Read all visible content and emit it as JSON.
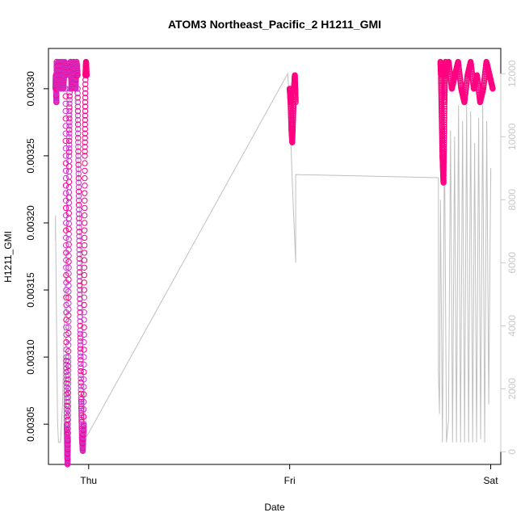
{
  "chart_data": {
    "type": "scatter",
    "title": "ATOM3 Northeast_Pacific_2 H1211_GMI",
    "xlabel": "Date",
    "ylabel": "H1211_GMI",
    "x_tick_labels": [
      "Thu",
      "Fri",
      "Sat"
    ],
    "x_ticks_days": [
      1,
      2,
      3
    ],
    "xlim_days": [
      0.8,
      3.05
    ],
    "ylim": [
      0.00302,
      0.00333
    ],
    "y_ticks": [
      0.00305,
      0.0031,
      0.00315,
      0.0032,
      0.00325,
      0.0033
    ],
    "y_tick_labels": [
      "0.00305",
      "0.00310",
      "0.00315",
      "0.00320",
      "0.00325",
      "0.00330"
    ],
    "y2lim": [
      -400,
      12800
    ],
    "y2_ticks": [
      0,
      2000,
      4000,
      6000,
      8000,
      10000,
      12000
    ],
    "y2_tick_labels": [
      "0",
      "2000",
      "4000",
      "6000",
      "8000",
      "10000",
      "12000"
    ],
    "point_color_light": "#cc33cc",
    "point_color_dark": "#ff0080",
    "line_color": "#c0c0c0",
    "axis_color": "#000000",
    "right_axis_color": "#c8c8c8",
    "series": [
      {
        "kind": "points",
        "segments": [
          {
            "x_start": 0.835,
            "x_end": 0.845,
            "y": [
              0.0033,
              0.00331,
              0.0033,
              0.00329,
              0.00332,
              0.0033,
              0.00331,
              0.0033
            ]
          },
          {
            "x_start": 0.845,
            "x_end": 0.885,
            "y": [
              0.00331,
              0.00332,
              0.0033,
              0.00331,
              0.00332,
              0.0033,
              0.00331,
              0.00332,
              0.0033,
              0.00331,
              0.00332,
              0.00331
            ]
          },
          {
            "x_start": 0.885,
            "x_end": 0.905,
            "y": [
              0.0033,
              0.0032,
              0.0031,
              0.00305,
              0.00303,
              0.00302,
              0.00304,
              0.0031,
              0.00318,
              0.00325,
              0.0033
            ]
          },
          {
            "x_start": 0.905,
            "x_end": 0.945,
            "y": [
              0.00331,
              0.00332,
              0.0033,
              0.00331,
              0.00332,
              0.00331,
              0.0033,
              0.00332,
              0.00331
            ]
          },
          {
            "x_start": 0.945,
            "x_end": 0.975,
            "y": [
              0.0033,
              0.00324,
              0.00318,
              0.00312,
              0.00307,
              0.00304,
              0.00303,
              0.00305
            ]
          },
          {
            "x_start": 0.975,
            "x_end": 0.99,
            "y": [
              0.00305,
              0.00315,
              0.00325,
              0.00331,
              0.00332,
              0.00331
            ]
          },
          {
            "x_start": 2.0,
            "x_end": 2.03,
            "y": [
              0.0033,
              0.00329,
              0.00327,
              0.00326,
              0.00328,
              0.0033,
              0.00331,
              0.00329
            ]
          },
          {
            "x_start": 2.75,
            "x_end": 2.775,
            "y": [
              0.00332,
              0.00331,
              0.00329,
              0.00327,
              0.00325,
              0.00324,
              0.00323,
              0.00326,
              0.00329,
              0.00331,
              0.00332
            ]
          },
          {
            "x_start": 2.775,
            "x_end": 3.01,
            "y": [
              0.00331,
              0.00332,
              0.0033,
              0.00331,
              0.00332,
              0.0033,
              0.00329,
              0.00331,
              0.00332,
              0.0033,
              0.00331,
              0.00329,
              0.0033,
              0.00332,
              0.00331,
              0.0033
            ]
          }
        ]
      },
      {
        "kind": "line",
        "axis": "right",
        "x": [
          0.835,
          0.835,
          0.845,
          0.85,
          0.86,
          0.87,
          0.88,
          0.89,
          0.9,
          0.91,
          0.92,
          0.93,
          0.94,
          0.95,
          0.96,
          0.97,
          0.98,
          0.99,
          0.99,
          1.0,
          1.99,
          2.0,
          2.01,
          2.02,
          2.03,
          2.03,
          2.74,
          2.74,
          2.745,
          2.75,
          2.76,
          2.77,
          2.78,
          2.79,
          2.8,
          2.81,
          2.82,
          2.83,
          2.84,
          2.85,
          2.86,
          2.87,
          2.88,
          2.89,
          2.9,
          2.91,
          2.92,
          2.93,
          2.94,
          2.95,
          2.96,
          2.97,
          2.98,
          2.99,
          3.0,
          3.0
        ],
        "y": [
          6700,
          7500,
          1000,
          300,
          300,
          1500,
          4500,
          7000,
          9500,
          10500,
          11500,
          12000,
          11000,
          9000,
          6000,
          3500,
          1500,
          700,
          500,
          600,
          12000,
          11000,
          9000,
          7500,
          6000,
          8800,
          8700,
          2600,
          1200,
          8000,
          300,
          10000,
          300,
          1000,
          10200,
          300,
          10000,
          300,
          11000,
          300,
          10500,
          300,
          11000,
          300,
          10800,
          300,
          9800,
          300,
          10600,
          400,
          11000,
          300,
          10500,
          1500,
          9000,
          8600
        ]
      }
    ]
  }
}
